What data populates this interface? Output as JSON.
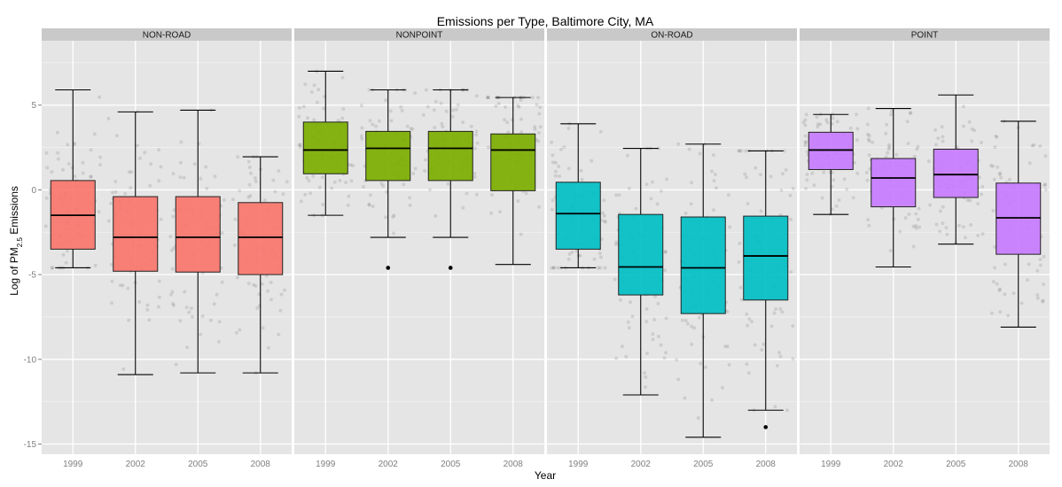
{
  "chart_data": {
    "type": "boxplot",
    "title": "Emissions per Type, Baltimore City, MA",
    "xlabel": "Year",
    "ylabel": {
      "prefix": "Log of PM",
      "sub": "2.5",
      "suffix": " Emissions"
    },
    "ylim": [
      -15.6,
      8.8
    ],
    "yticks": [
      5,
      0,
      -5,
      -10,
      -15
    ],
    "categories": [
      "1999",
      "2002",
      "2005",
      "2008"
    ],
    "grid": true,
    "jitter_points": true,
    "panels": [
      {
        "name": "NON-ROAD",
        "color": "#f8766d",
        "boxes": [
          {
            "year": "1999",
            "whisker_low": -4.6,
            "q1": -3.5,
            "median": -1.5,
            "q3": 0.55,
            "whisker_high": 5.9,
            "outliers": []
          },
          {
            "year": "2002",
            "whisker_low": -10.9,
            "q1": -4.8,
            "median": -2.8,
            "q3": -0.4,
            "whisker_high": 4.6,
            "outliers": []
          },
          {
            "year": "2005",
            "whisker_low": -10.8,
            "q1": -4.85,
            "median": -2.8,
            "q3": -0.4,
            "whisker_high": 4.7,
            "outliers": []
          },
          {
            "year": "2008",
            "whisker_low": -10.8,
            "q1": -5.0,
            "median": -2.8,
            "q3": -0.75,
            "whisker_high": 1.95,
            "outliers": []
          }
        ]
      },
      {
        "name": "NONPOINT",
        "color": "#7cae00",
        "boxes": [
          {
            "year": "1999",
            "whisker_low": -1.5,
            "q1": 0.95,
            "median": 2.35,
            "q3": 4.0,
            "whisker_high": 7.0,
            "outliers": []
          },
          {
            "year": "2002",
            "whisker_low": -2.8,
            "q1": 0.55,
            "median": 2.45,
            "q3": 3.45,
            "whisker_high": 5.9,
            "outliers": [
              -4.6
            ]
          },
          {
            "year": "2005",
            "whisker_low": -2.8,
            "q1": 0.55,
            "median": 2.45,
            "q3": 3.45,
            "whisker_high": 5.9,
            "outliers": [
              -4.6
            ]
          },
          {
            "year": "2008",
            "whisker_low": -4.4,
            "q1": -0.05,
            "median": 2.35,
            "q3": 3.3,
            "whisker_high": 5.45,
            "outliers": []
          }
        ]
      },
      {
        "name": "ON-ROAD",
        "color": "#00bfc4",
        "boxes": [
          {
            "year": "1999",
            "whisker_low": -4.6,
            "q1": -3.5,
            "median": -1.4,
            "q3": 0.45,
            "whisker_high": 3.9,
            "outliers": []
          },
          {
            "year": "2002",
            "whisker_low": -12.1,
            "q1": -6.2,
            "median": -4.55,
            "q3": -1.45,
            "whisker_high": 2.45,
            "outliers": []
          },
          {
            "year": "2005",
            "whisker_low": -14.6,
            "q1": -7.3,
            "median": -4.6,
            "q3": -1.6,
            "whisker_high": 2.7,
            "outliers": []
          },
          {
            "year": "2008",
            "whisker_low": -13.0,
            "q1": -6.5,
            "median": -3.9,
            "q3": -1.55,
            "whisker_high": 2.3,
            "outliers": [
              -14.0
            ]
          }
        ]
      },
      {
        "name": "POINT",
        "color": "#c77cff",
        "boxes": [
          {
            "year": "1999",
            "whisker_low": -1.45,
            "q1": 1.2,
            "median": 2.35,
            "q3": 3.4,
            "whisker_high": 4.45,
            "outliers": []
          },
          {
            "year": "2002",
            "whisker_low": -4.55,
            "q1": -1.0,
            "median": 0.7,
            "q3": 1.85,
            "whisker_high": 4.8,
            "outliers": []
          },
          {
            "year": "2005",
            "whisker_low": -3.2,
            "q1": -0.45,
            "median": 0.9,
            "q3": 2.4,
            "whisker_high": 5.6,
            "outliers": []
          },
          {
            "year": "2008",
            "whisker_low": -8.1,
            "q1": -3.8,
            "median": -1.65,
            "q3": 0.4,
            "whisker_high": 4.05,
            "outliers": []
          }
        ]
      }
    ]
  }
}
